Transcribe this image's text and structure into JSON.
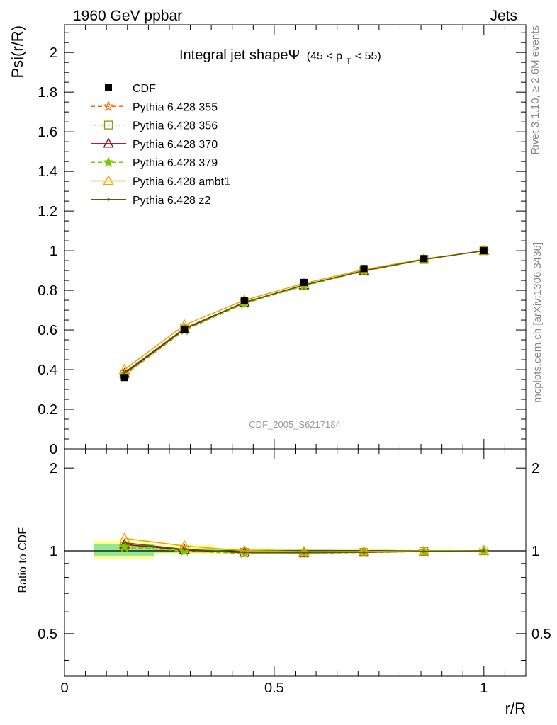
{
  "header": {
    "left": "1960 GeV ppbar",
    "right": "Jets"
  },
  "side_labels": {
    "rivet": "Rivet 3.1.10, ≥ 2.6M events",
    "mcplots": "mcplots.cern.ch [arXiv:1306.3436]"
  },
  "watermark": "CDF_2005_S6217184",
  "chart_data": [
    {
      "type": "line",
      "panel": "main",
      "title": "Integral jet shapeΨ",
      "title_suffix": "(45 < p",
      "title_sub": "T",
      "title_end": " < 55)",
      "xlabel": "r/R",
      "ylabel": "Psi(r/R)",
      "xlim": [
        0,
        1.1
      ],
      "ylim": [
        0,
        2.14
      ],
      "y_ticks": [
        0,
        0.2,
        0.4,
        0.6,
        0.8,
        1,
        1.2,
        1.4,
        1.6,
        1.8,
        2
      ],
      "y_tick_labels": [
        "0",
        "0.2",
        "0.4",
        "0.6",
        "0.8",
        "1",
        "1.2",
        "1.4",
        "1.6",
        "1.8",
        "2"
      ],
      "legend_position": "top-left",
      "x": [
        0.143,
        0.286,
        0.429,
        0.571,
        0.714,
        0.857,
        1.0
      ],
      "data": {
        "name": "CDF",
        "y": [
          0.36,
          0.6,
          0.75,
          0.84,
          0.91,
          0.96,
          1.0
        ],
        "bin_edges": [
          0.071,
          0.214,
          0.357,
          0.5,
          0.643,
          0.786,
          0.929,
          1.071
        ]
      },
      "series": [
        {
          "name": "Pythia 6.428 355",
          "color": "#ff6600",
          "style": "dashed",
          "marker": "star-open",
          "y": [
            0.37,
            0.6,
            0.735,
            0.823,
            0.897,
            0.955,
            1.0
          ]
        },
        {
          "name": "Pythia 6.428 356",
          "color": "#7fa019",
          "style": "dotted",
          "marker": "square-open",
          "y": [
            0.375,
            0.605,
            0.74,
            0.825,
            0.898,
            0.956,
            1.0
          ]
        },
        {
          "name": "Pythia 6.428 370",
          "color": "#990022",
          "style": "solid",
          "marker": "triangle-open",
          "y": [
            0.38,
            0.605,
            0.738,
            0.826,
            0.899,
            0.956,
            1.0
          ]
        },
        {
          "name": "Pythia 6.428 379",
          "color": "#77cc00",
          "style": "dashed",
          "marker": "star",
          "y": [
            0.372,
            0.598,
            0.733,
            0.822,
            0.896,
            0.955,
            1.0
          ]
        },
        {
          "name": "Pythia 6.428 ambt1",
          "color": "#f0a000",
          "style": "solid",
          "marker": "triangle-open",
          "y": [
            0.4,
            0.625,
            0.75,
            0.835,
            0.905,
            0.958,
            1.0
          ]
        },
        {
          "name": "Pythia 6.428 z2",
          "color": "#5a5a00",
          "style": "solid",
          "marker": "dot",
          "y": [
            0.385,
            0.608,
            0.74,
            0.827,
            0.899,
            0.956,
            1.0
          ]
        }
      ]
    },
    {
      "type": "line",
      "panel": "ratio",
      "xlabel": "r/R",
      "ylabel": "Ratio to CDF",
      "xlim": [
        0,
        1.1
      ],
      "ylim": [
        0.35,
        2.35
      ],
      "y_scale": "log",
      "x_ticks": [
        0,
        0.5,
        1
      ],
      "x_tick_labels": [
        "0",
        "0.5",
        "1"
      ],
      "y_ticks": [
        0.5,
        1,
        2
      ],
      "y_tick_labels": [
        "0.5",
        "1",
        "2"
      ],
      "bands": {
        "inner_color": "#8fe88f",
        "outer_color": "#ffff99",
        "inner_lo": [
          0.96,
          0.985,
          0.987,
          0.99,
          0.992,
          0.995,
          0.998
        ],
        "inner_hi": [
          1.06,
          1.02,
          1.012,
          1.01,
          1.008,
          1.005,
          1.002
        ],
        "outer_lo": [
          0.93,
          0.97,
          0.975,
          0.982,
          0.985,
          0.99,
          0.997
        ],
        "outer_hi": [
          1.09,
          1.05,
          1.025,
          1.018,
          1.015,
          1.01,
          1.003
        ]
      },
      "series": [
        {
          "name": "Pythia 6.428 355",
          "y": [
            1.03,
            1.0,
            0.98,
            0.98,
            0.986,
            0.995,
            1.0
          ]
        },
        {
          "name": "Pythia 6.428 356",
          "y": [
            1.04,
            1.008,
            0.987,
            0.982,
            0.987,
            0.996,
            1.0
          ]
        },
        {
          "name": "Pythia 6.428 370",
          "y": [
            1.055,
            1.008,
            0.984,
            0.983,
            0.988,
            0.996,
            1.0
          ]
        },
        {
          "name": "Pythia 6.428 379",
          "y": [
            1.035,
            0.997,
            0.977,
            0.979,
            0.985,
            0.995,
            1.0
          ]
        },
        {
          "name": "Pythia 6.428 ambt1",
          "y": [
            1.11,
            1.042,
            1.0,
            0.994,
            0.995,
            0.998,
            1.0
          ]
        },
        {
          "name": "Pythia 6.428 z2",
          "y": [
            1.07,
            1.013,
            0.987,
            0.985,
            0.988,
            0.996,
            1.0
          ]
        }
      ]
    }
  ]
}
